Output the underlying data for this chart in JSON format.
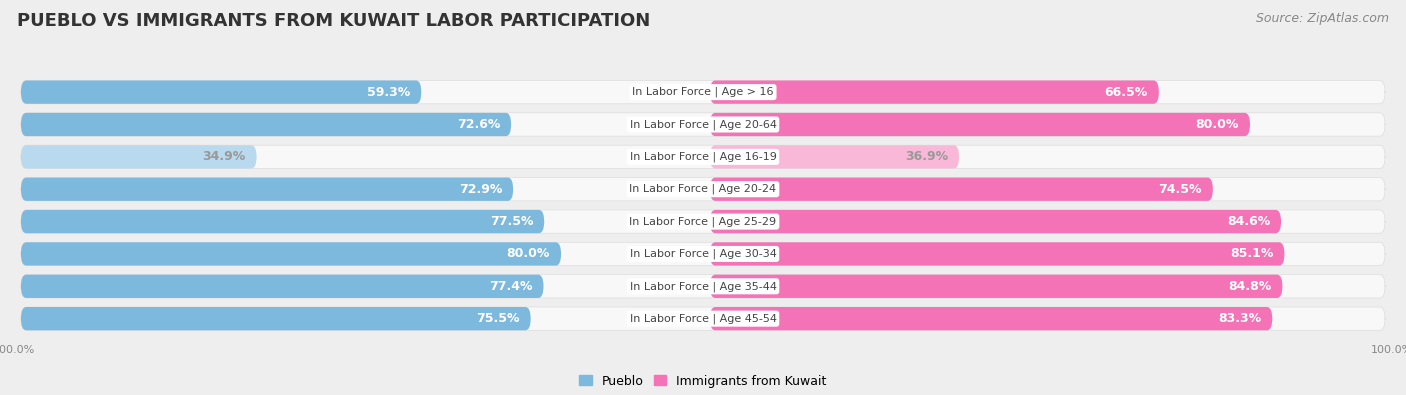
{
  "title": "PUEBLO VS IMMIGRANTS FROM KUWAIT LABOR PARTICIPATION",
  "source": "Source: ZipAtlas.com",
  "categories": [
    "In Labor Force | Age > 16",
    "In Labor Force | Age 20-64",
    "In Labor Force | Age 16-19",
    "In Labor Force | Age 20-24",
    "In Labor Force | Age 25-29",
    "In Labor Force | Age 30-34",
    "In Labor Force | Age 35-44",
    "In Labor Force | Age 45-54"
  ],
  "pueblo_values": [
    59.3,
    72.6,
    34.9,
    72.9,
    77.5,
    80.0,
    77.4,
    75.5
  ],
  "kuwait_values": [
    66.5,
    80.0,
    36.9,
    74.5,
    84.6,
    85.1,
    84.8,
    83.3
  ],
  "pueblo_color": "#7db8dd",
  "pueblo_color_light": "#b8d9ee",
  "kuwait_color": "#f472b6",
  "kuwait_color_light": "#f9b8d8",
  "background_color": "#eeeeee",
  "row_bg_color": "#f8f8f8",
  "title_fontsize": 13,
  "source_fontsize": 9,
  "bar_label_fontsize": 9,
  "category_fontsize": 8,
  "legend_fontsize": 9,
  "axis_label_fontsize": 8,
  "max_value": 100.0
}
